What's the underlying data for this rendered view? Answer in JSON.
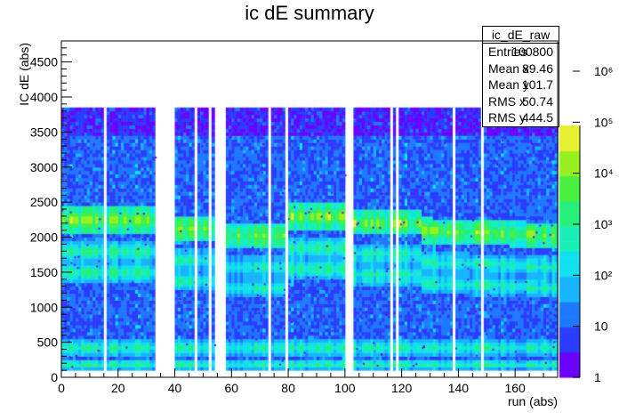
{
  "chart_data": {
    "type": "heatmap",
    "title": "ic dE summary",
    "xlabel": "run (abs)",
    "ylabel": "IC dE (abs)",
    "xlim": [
      0,
      175
    ],
    "ylim": [
      0,
      4800
    ],
    "zscale": "log",
    "zlim": [
      1,
      1000000
    ],
    "x_ticks": [
      0,
      20,
      40,
      60,
      80,
      100,
      120,
      140,
      160
    ],
    "y_ticks": [
      0,
      500,
      1000,
      1500,
      2000,
      2500,
      3000,
      3500,
      4000,
      4500
    ],
    "z_ticks": [
      "1",
      "10",
      "10²",
      "10³",
      "10⁴",
      "10⁵",
      "10⁶"
    ],
    "palette": [
      "#6a00ff",
      "#2a3cff",
      "#1f78ff",
      "#18b4ff",
      "#10e0f0",
      "#18f0b8",
      "#24f07a",
      "#48f040",
      "#98f020",
      "#e6f030"
    ],
    "data_region_ymax": 3850,
    "empty_x_ranges": [
      [
        33,
        40
      ],
      [
        54,
        58
      ],
      [
        100,
        103
      ]
    ],
    "bands": [
      {
        "y_center": 2250,
        "y_width": 180,
        "level": "10⁴"
      },
      {
        "y_center": 1800,
        "y_width": 150,
        "level": "10³"
      },
      {
        "y_center": 1500,
        "y_width": 150,
        "level": "10³"
      },
      {
        "y_center": 420,
        "y_width": 120,
        "level": "10³"
      },
      {
        "y_center": 180,
        "y_width": 80,
        "level": "10³"
      }
    ],
    "stats": {
      "name": "ic_dE_raw",
      "rows": [
        {
          "label": "Entries",
          "value": "100800"
        },
        {
          "label": "Mean x",
          "value": "89.46"
        },
        {
          "label": "Mean y",
          "value": "101.7"
        },
        {
          "label": "RMS x",
          "value": "50.74"
        },
        {
          "label": "RMS y",
          "value": "444.5"
        }
      ]
    }
  }
}
